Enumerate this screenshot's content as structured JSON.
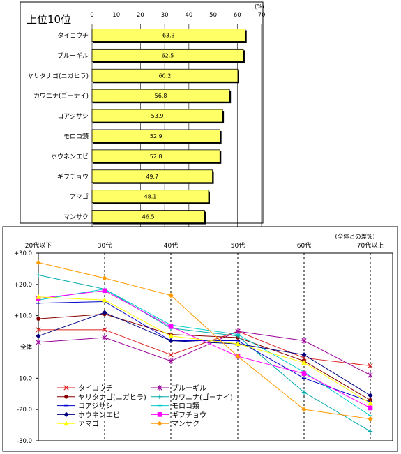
{
  "chart_data": [
    {
      "type": "bar",
      "orientation": "horizontal",
      "title": "上位10位",
      "unit": "(%)",
      "xlim": [
        0,
        70
      ],
      "xticks": [
        0,
        10,
        20,
        30,
        40,
        50,
        60,
        70
      ],
      "grid": true,
      "categories": [
        "タイコウチ",
        "ブルーギル",
        "ヤリタナゴ(ニガヒラ)",
        "カワニナ(ゴーナイ)",
        "コアジサシ",
        "モロコ類",
        "ホウネンエビ",
        "ギフチョウ",
        "アマゴ",
        "マンサク"
      ],
      "values": [
        63.3,
        62.5,
        60.2,
        56.8,
        53.9,
        52.9,
        52.8,
        49.7,
        48.1,
        46.5
      ],
      "value_labels": [
        "63.3",
        "62.5",
        "60.2",
        "56.8",
        "53.9",
        "52.9",
        "52.8",
        "49.7",
        "48.1",
        "46.5"
      ],
      "bar_color": "#ffff66"
    },
    {
      "type": "line",
      "unit": "(全体との差%)",
      "categories": [
        "20代以下",
        "30代",
        "40代",
        "50代",
        "60代",
        "70代以上"
      ],
      "ylim": [
        -30,
        30
      ],
      "yticks": [
        30,
        20,
        10,
        0,
        -10,
        -20,
        -30
      ],
      "ytick_labels": [
        "+30.0",
        "+20.0",
        "+10.0",
        "全体",
        "-10.0",
        "-20.0",
        "-30.0"
      ],
      "grid": "vertical-dashed",
      "legend_position": "bottom-left",
      "series": [
        {
          "name": "タイコウチ",
          "values": [
            5.5,
            5.5,
            -2.5,
            5,
            -3.5,
            -6
          ],
          "color": "#dd2222",
          "marker": "x"
        },
        {
          "name": "ブルーギル",
          "values": [
            1.5,
            3,
            -4.5,
            5,
            2,
            -9
          ],
          "color": "#990099",
          "marker": "star"
        },
        {
          "name": "ヤリタナゴ(ニガヒラ)",
          "values": [
            9,
            10.5,
            4,
            3,
            -4.5,
            -17
          ],
          "color": "#880000",
          "marker": "circle"
        },
        {
          "name": "カワニナ(ゴーナイ)",
          "values": [
            23,
            18.5,
            6,
            3.5,
            -14.5,
            -27
          ],
          "color": "#00aaaa",
          "marker": "plus"
        },
        {
          "name": "コアジサシ",
          "values": [
            14,
            14.5,
            2,
            2,
            -10,
            -17.5
          ],
          "color": "#0000cc",
          "marker": "dash"
        },
        {
          "name": "モロコ類",
          "values": [
            15,
            18.5,
            7,
            4,
            -8,
            -22
          ],
          "color": "#00cccc",
          "marker": "dash"
        },
        {
          "name": "ホウネンエビ",
          "values": [
            3.5,
            11,
            2,
            1,
            -2.5,
            -15.5
          ],
          "color": "#000080",
          "marker": "diamond"
        },
        {
          "name": "ギフチョウ",
          "values": [
            15.5,
            18,
            6.5,
            -3,
            -8.5,
            -19.5
          ],
          "color": "#ff00ff",
          "marker": "square"
        },
        {
          "name": "アマゴ",
          "values": [
            16,
            15,
            3.5,
            1,
            -5,
            -18
          ],
          "color": "#ffff00",
          "marker": "triangle"
        },
        {
          "name": "マンサク",
          "values": [
            27,
            22,
            16.5,
            -3,
            -20,
            -23
          ],
          "color": "#ff9900",
          "marker": "diamond"
        }
      ]
    }
  ]
}
